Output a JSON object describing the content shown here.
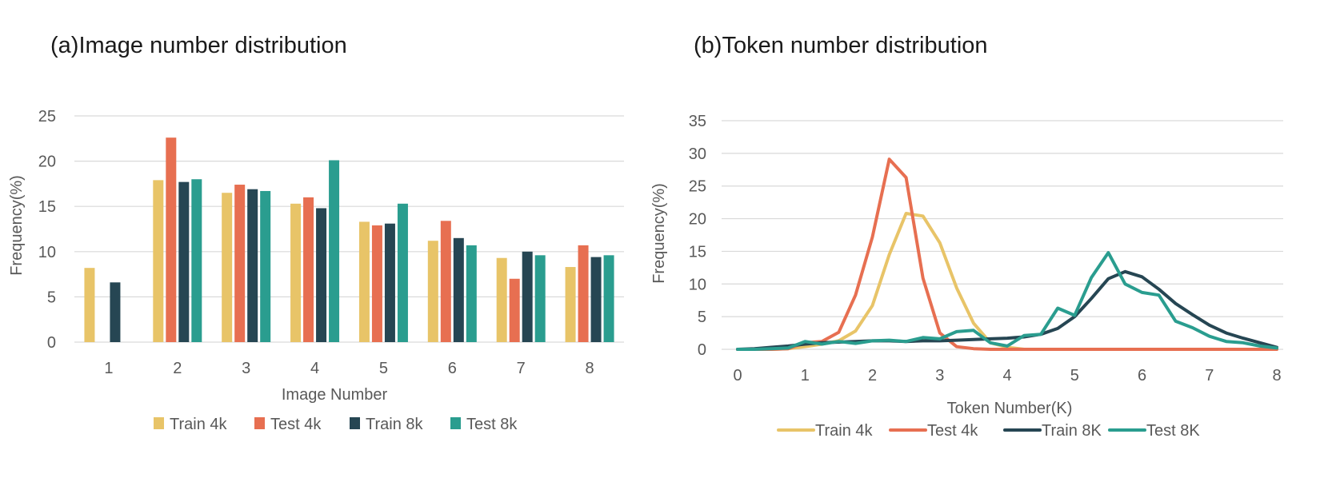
{
  "chart_data": [
    {
      "type": "bar",
      "title": "(a)Image number distribution",
      "xlabel": "Image Number",
      "ylabel": "Frequency(%)",
      "ylim": [
        0,
        25
      ],
      "yticks": [
        0,
        5,
        10,
        15,
        20,
        25
      ],
      "grid": true,
      "legend_position": "bottom",
      "categories": [
        "1",
        "2",
        "3",
        "4",
        "5",
        "6",
        "7",
        "8"
      ],
      "series": [
        {
          "name": "Train 4k",
          "color": "#E8C468",
          "values": [
            8.2,
            17.9,
            16.5,
            15.3,
            13.3,
            11.2,
            9.3,
            8.3
          ]
        },
        {
          "name": "Test 4k",
          "color": "#E76F51",
          "values": [
            0,
            22.6,
            17.4,
            16.0,
            12.9,
            13.4,
            7.0,
            10.7
          ]
        },
        {
          "name": "Train 8k",
          "color": "#264653",
          "values": [
            6.6,
            17.7,
            16.9,
            14.8,
            13.1,
            11.5,
            10.0,
            9.4
          ]
        },
        {
          "name": "Test 8k",
          "color": "#2A9D8F",
          "values": [
            0,
            18.0,
            16.7,
            20.1,
            15.3,
            10.7,
            9.6,
            9.6
          ]
        }
      ]
    },
    {
      "type": "line",
      "title": "(b)Token number distribution",
      "xlabel": "Token Number(K)",
      "ylabel": "Frequency(%)",
      "xlim": [
        0,
        8
      ],
      "ylim": [
        0,
        35
      ],
      "xticks": [
        0,
        1,
        2,
        3,
        4,
        5,
        6,
        7,
        8
      ],
      "yticks": [
        0,
        5,
        10,
        15,
        20,
        25,
        30,
        35
      ],
      "grid": true,
      "legend_position": "bottom",
      "x": [
        0,
        0.25,
        0.5,
        0.75,
        1.0,
        1.25,
        1.5,
        1.75,
        2.0,
        2.25,
        2.5,
        2.75,
        3.0,
        3.25,
        3.5,
        3.75,
        4.0,
        4.25,
        4.5,
        4.75,
        5.0,
        5.25,
        5.5,
        5.75,
        6.0,
        6.25,
        6.5,
        6.75,
        7.0,
        7.25,
        7.5,
        7.75,
        8.0
      ],
      "series": [
        {
          "name": "Train 4k",
          "color": "#E8C468",
          "values": [
            0,
            0,
            0,
            0.1,
            0.4,
            0.8,
            1.3,
            2.8,
            6.7,
            14.5,
            20.8,
            20.4,
            16.3,
            9.4,
            4.0,
            1.0,
            0.3,
            0,
            0,
            0,
            0,
            0,
            0,
            0,
            0,
            0,
            0,
            0,
            0,
            0,
            0,
            0,
            0
          ]
        },
        {
          "name": "Test 4k",
          "color": "#E76F51",
          "values": [
            0,
            0,
            0,
            0.1,
            1.0,
            1.2,
            2.6,
            8.3,
            17.2,
            29.1,
            26.3,
            10.9,
            2.5,
            0.4,
            0.1,
            0,
            0,
            0,
            0,
            0,
            0,
            0,
            0,
            0,
            0,
            0,
            0,
            0,
            0,
            0,
            0,
            0,
            0
          ]
        },
        {
          "name": "Train 8K",
          "color": "#264653",
          "values": [
            0,
            0.1,
            0.3,
            0.5,
            0.8,
            1.0,
            1.1,
            1.2,
            1.3,
            1.3,
            1.2,
            1.3,
            1.3,
            1.4,
            1.5,
            1.6,
            1.7,
            1.9,
            2.3,
            3.2,
            5.0,
            7.8,
            10.8,
            11.9,
            11.1,
            9.2,
            7.0,
            5.3,
            3.7,
            2.5,
            1.7,
            1.0,
            0.3
          ]
        },
        {
          "name": "Test 8K",
          "color": "#2A9D8F",
          "values": [
            0,
            0,
            0.1,
            0.2,
            1.2,
            0.8,
            1.2,
            0.9,
            1.3,
            1.4,
            1.2,
            1.8,
            1.6,
            2.7,
            2.9,
            1.0,
            0.5,
            2.1,
            2.3,
            6.3,
            5.2,
            11.0,
            14.8,
            10.0,
            8.7,
            8.3,
            4.3,
            3.3,
            2.0,
            1.2,
            1.0,
            0.5,
            0.2
          ]
        }
      ]
    }
  ]
}
